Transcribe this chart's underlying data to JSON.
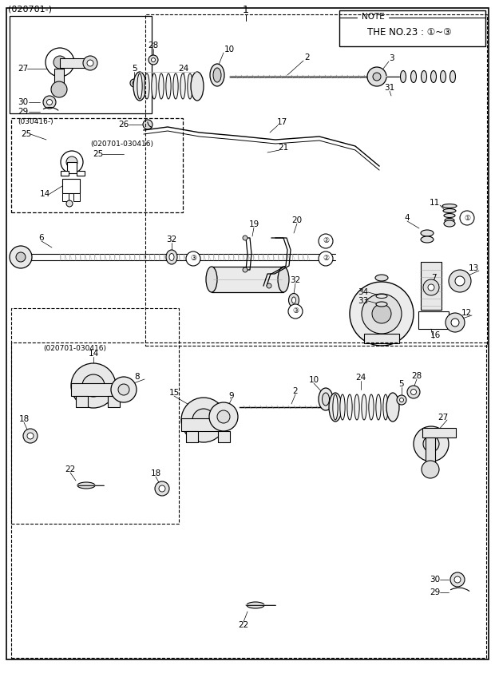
{
  "bg_color": "#ffffff",
  "lc": "#000000",
  "fig_width": 6.2,
  "fig_height": 8.48,
  "dpi": 100,
  "title": "(020701-)",
  "part_num": "1",
  "note_line1": "NOTE",
  "note_line2": "THE NO.23 : ①~③"
}
